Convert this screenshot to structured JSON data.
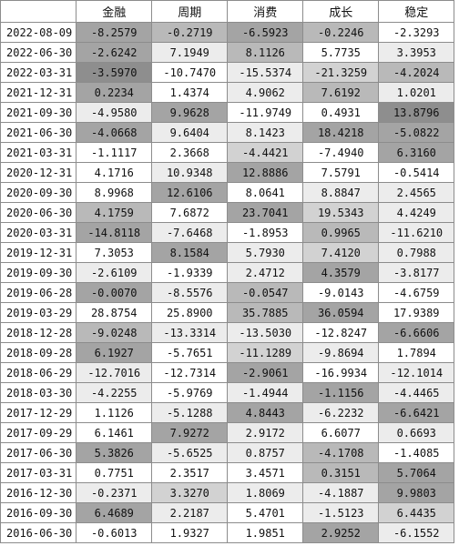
{
  "headers": [
    "",
    "金融",
    "周期",
    "消费",
    "成长",
    "稳定"
  ],
  "shade_colors": [
    "#ffffff",
    "#ececec",
    "#d2d2d2",
    "#b9b9b9",
    "#a4a4a4",
    "#8e8e8e"
  ],
  "rows": [
    {
      "date": "2022-08-09",
      "values": [
        "-8.2579",
        "-0.2719",
        "-6.5923",
        "-0.2246",
        "-2.3293"
      ],
      "shades": [
        4,
        3,
        4,
        3,
        0
      ]
    },
    {
      "date": "2022-06-30",
      "values": [
        "-2.6242",
        "7.1949",
        "8.1126",
        "5.7735",
        "3.3953"
      ],
      "shades": [
        4,
        1,
        3,
        0,
        1
      ]
    },
    {
      "date": "2022-03-31",
      "values": [
        "-3.5970",
        "-10.7470",
        "-15.5374",
        "-21.3259",
        "-4.2024"
      ],
      "shades": [
        5,
        0,
        1,
        2,
        3
      ]
    },
    {
      "date": "2021-12-31",
      "values": [
        "0.2234",
        "1.4374",
        "4.9062",
        "7.6192",
        "1.0201"
      ],
      "shades": [
        4,
        0,
        1,
        3,
        1
      ]
    },
    {
      "date": "2021-09-30",
      "values": [
        "-4.9580",
        "9.9628",
        "-11.9749",
        "0.4931",
        "13.8796"
      ],
      "shades": [
        1,
        4,
        0,
        0,
        5
      ]
    },
    {
      "date": "2021-06-30",
      "values": [
        "-4.0668",
        "9.6404",
        "8.1423",
        "18.4218",
        "-5.0822"
      ],
      "shades": [
        4,
        1,
        1,
        4,
        4
      ]
    },
    {
      "date": "2021-03-31",
      "values": [
        "-1.1117",
        "2.3668",
        "-4.4421",
        "-7.4940",
        "6.3160"
      ],
      "shades": [
        0,
        0,
        2,
        0,
        4
      ]
    },
    {
      "date": "2020-12-31",
      "values": [
        "4.1716",
        "10.9348",
        "12.8886",
        "7.5791",
        "-0.5414"
      ],
      "shades": [
        0,
        1,
        4,
        0,
        0
      ]
    },
    {
      "date": "2020-09-30",
      "values": [
        "8.9968",
        "12.6106",
        "8.0641",
        "8.8847",
        "2.4565"
      ],
      "shades": [
        0,
        4,
        0,
        1,
        1
      ]
    },
    {
      "date": "2020-06-30",
      "values": [
        "4.1759",
        "7.6872",
        "23.7041",
        "19.5343",
        "4.4249"
      ],
      "shades": [
        3,
        0,
        4,
        2,
        1
      ]
    },
    {
      "date": "2020-03-31",
      "values": [
        "-14.8118",
        "-7.6468",
        "-1.8953",
        "0.9965",
        "-11.6210"
      ],
      "shades": [
        4,
        1,
        0,
        3,
        1
      ]
    },
    {
      "date": "2019-12-31",
      "values": [
        "7.3053",
        "8.1584",
        "5.7930",
        "7.4120",
        "0.7988"
      ],
      "shades": [
        0,
        4,
        1,
        2,
        1
      ]
    },
    {
      "date": "2019-09-30",
      "values": [
        "-2.6109",
        "-1.9339",
        "2.4712",
        "4.3579",
        "-3.8177"
      ],
      "shades": [
        1,
        0,
        1,
        4,
        1
      ]
    },
    {
      "date": "2019-06-28",
      "values": [
        "-0.0070",
        "-8.5576",
        "-0.0547",
        "-9.0143",
        "-4.6759"
      ],
      "shades": [
        4,
        1,
        3,
        0,
        0
      ]
    },
    {
      "date": "2019-03-29",
      "values": [
        "28.8754",
        "25.8900",
        "35.7885",
        "36.0594",
        "17.9389"
      ],
      "shades": [
        0,
        0,
        3,
        4,
        0
      ]
    },
    {
      "date": "2018-12-28",
      "values": [
        "-9.0248",
        "-13.3314",
        "-13.5030",
        "-12.8247",
        "-6.6606"
      ],
      "shades": [
        3,
        1,
        1,
        0,
        4
      ]
    },
    {
      "date": "2018-09-28",
      "values": [
        "6.1927",
        "-5.7651",
        "-11.1289",
        "-9.8694",
        "1.7894"
      ],
      "shades": [
        4,
        0,
        2,
        1,
        0
      ]
    },
    {
      "date": "2018-06-29",
      "values": [
        "-12.7016",
        "-12.7314",
        "-2.9061",
        "-16.9934",
        "-12.1014"
      ],
      "shades": [
        1,
        0,
        4,
        0,
        1
      ]
    },
    {
      "date": "2018-03-30",
      "values": [
        "-4.2255",
        "-5.9769",
        "-1.4944",
        "-1.1156",
        "-4.4465"
      ],
      "shades": [
        1,
        0,
        1,
        4,
        1
      ]
    },
    {
      "date": "2017-12-29",
      "values": [
        "1.1126",
        "-5.1288",
        "4.8443",
        "-6.2232",
        "-6.6421"
      ],
      "shades": [
        0,
        1,
        4,
        1,
        4
      ]
    },
    {
      "date": "2017-09-29",
      "values": [
        "6.1461",
        "7.9272",
        "2.9172",
        "6.6077",
        "0.6693"
      ],
      "shades": [
        0,
        4,
        1,
        0,
        1
      ]
    },
    {
      "date": "2017-06-30",
      "values": [
        "5.3826",
        "-5.6525",
        "0.8757",
        "-4.1708",
        "-1.4085"
      ],
      "shades": [
        4,
        1,
        1,
        3,
        0
      ]
    },
    {
      "date": "2017-03-31",
      "values": [
        "0.7751",
        "2.3517",
        "3.4571",
        "0.3151",
        "5.7064"
      ],
      "shades": [
        0,
        0,
        0,
        3,
        4
      ]
    },
    {
      "date": "2016-12-30",
      "values": [
        "-0.2371",
        "3.3270",
        "1.8069",
        "-4.1887",
        "9.9803"
      ],
      "shades": [
        1,
        2,
        1,
        1,
        4
      ]
    },
    {
      "date": "2016-09-30",
      "values": [
        "6.4689",
        "2.2187",
        "5.4701",
        "-1.5123",
        "6.4435"
      ],
      "shades": [
        4,
        1,
        0,
        1,
        2
      ]
    },
    {
      "date": "2016-06-30",
      "values": [
        "-0.6013",
        "1.9327",
        "1.9851",
        "2.9252",
        "-6.1552"
      ],
      "shades": [
        0,
        0,
        0,
        4,
        1
      ]
    }
  ]
}
